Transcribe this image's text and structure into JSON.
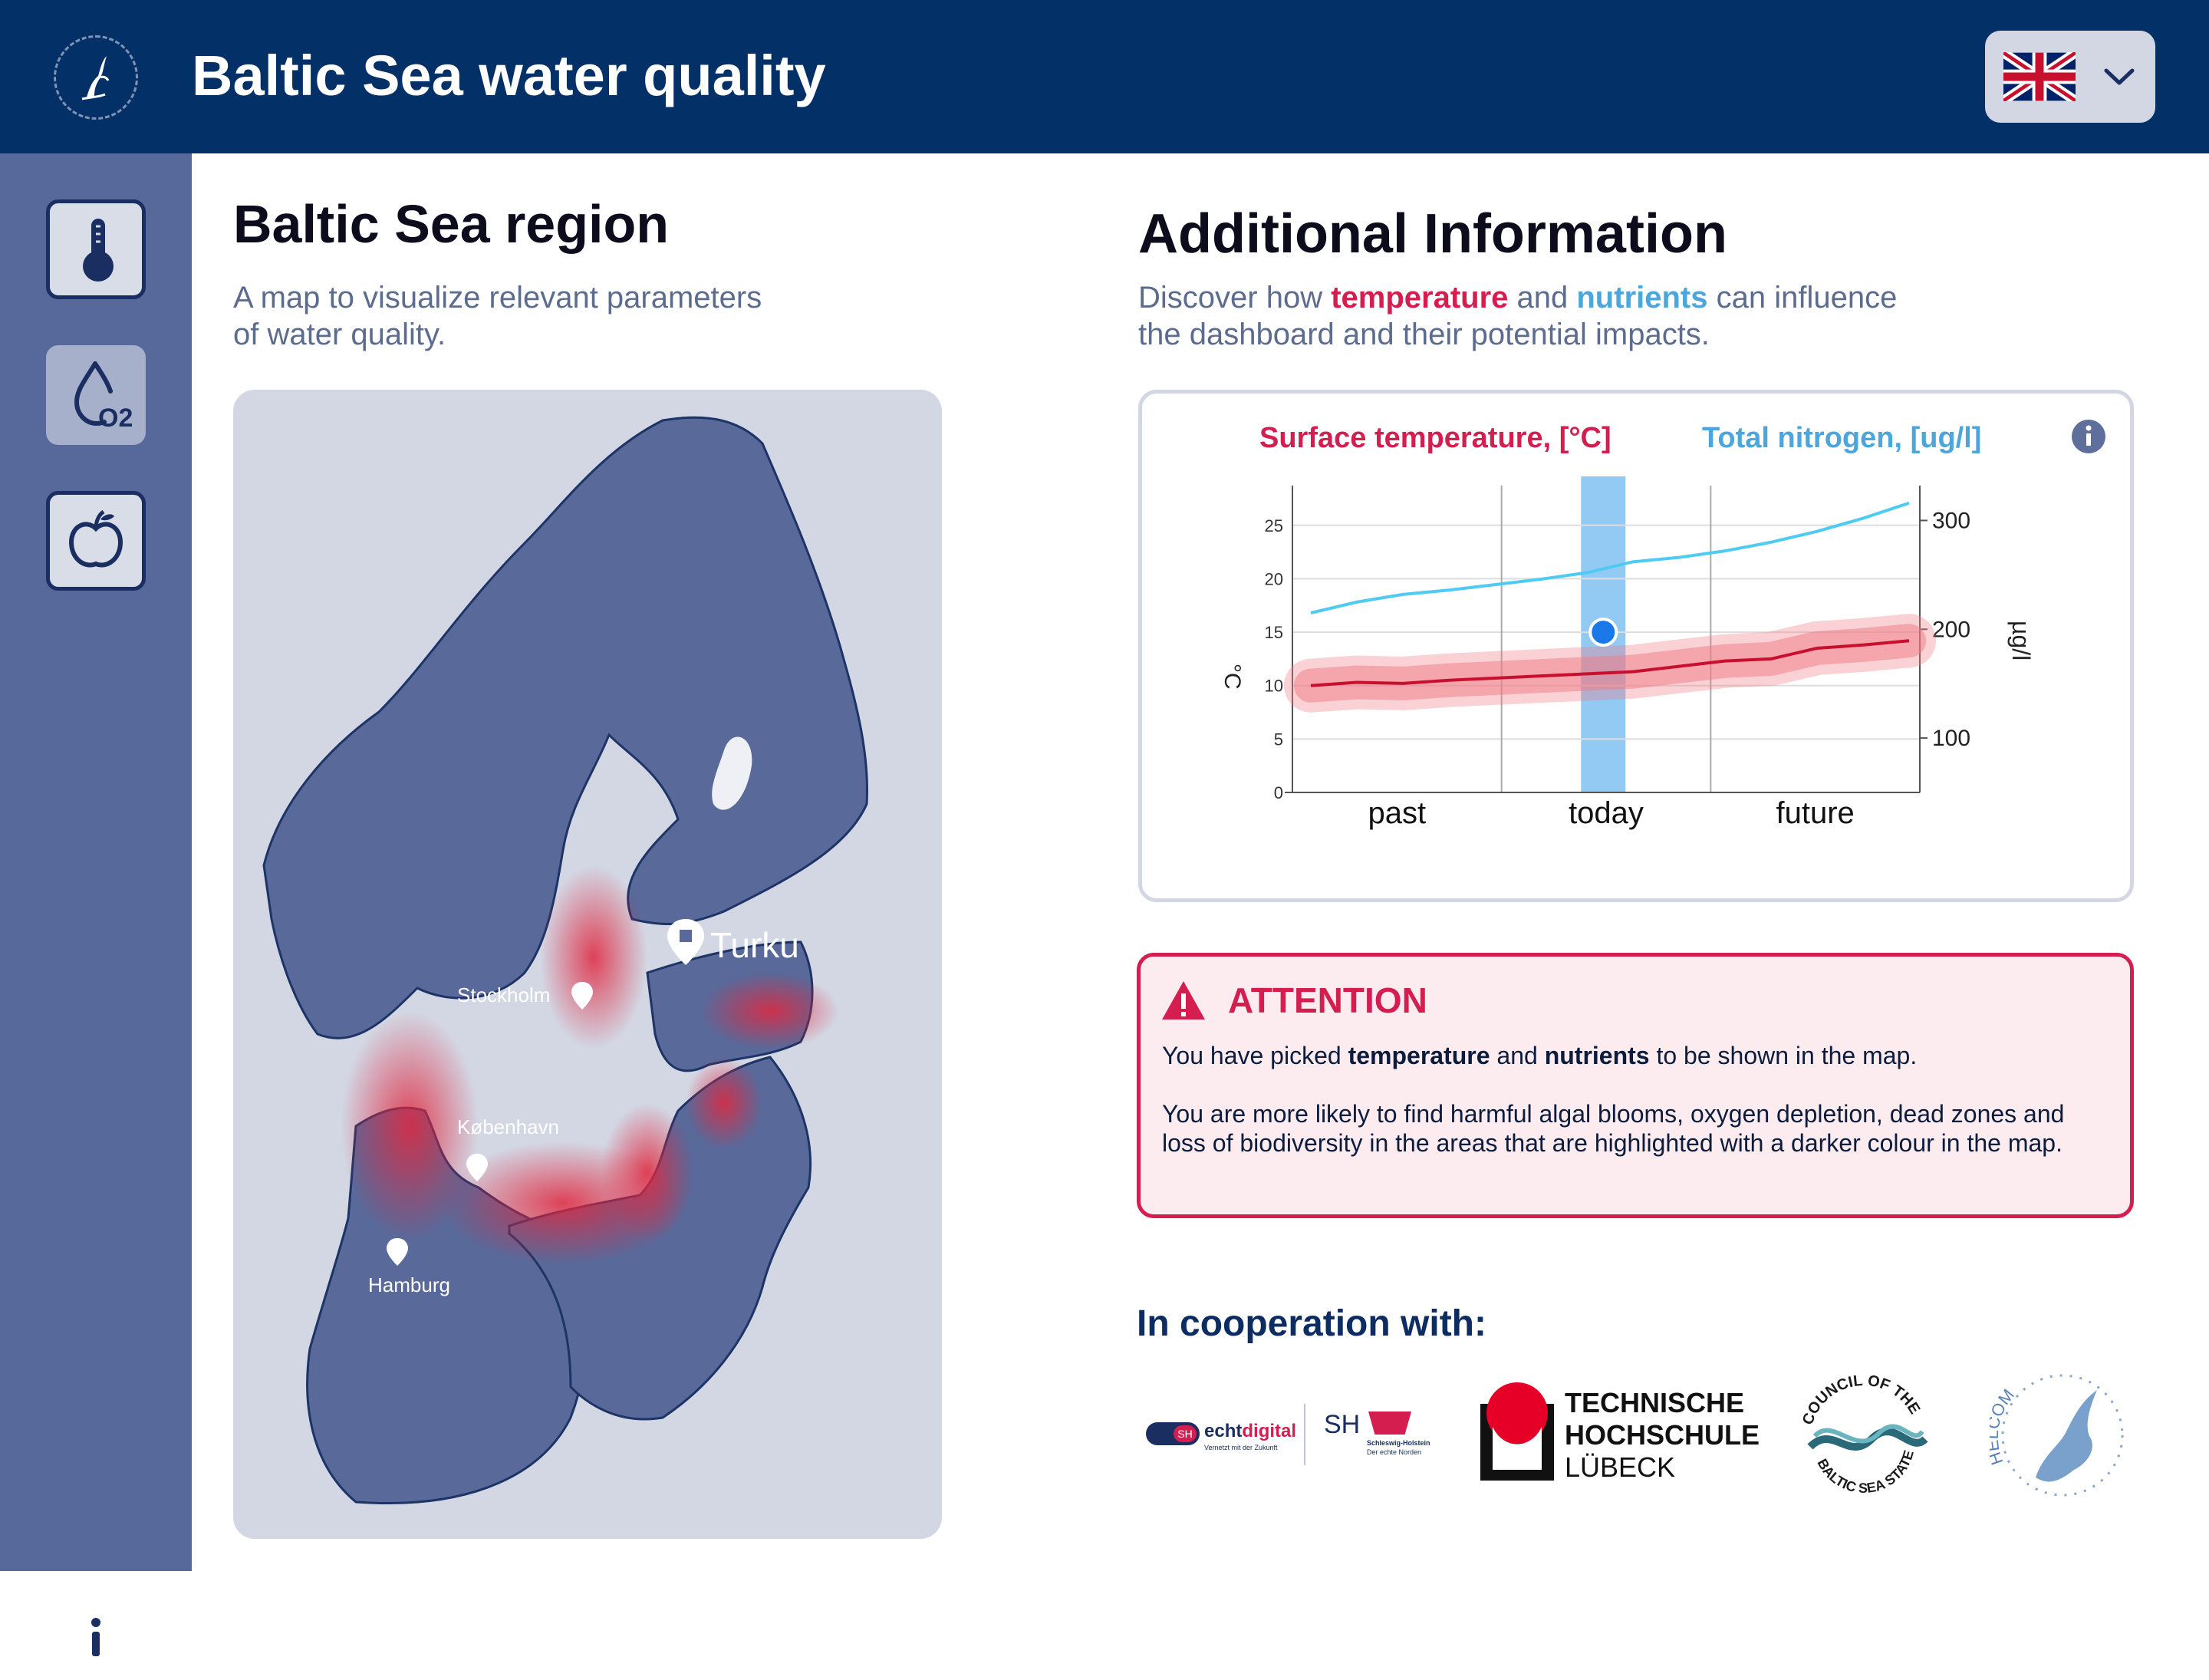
{
  "header": {
    "title": "Baltic Sea water quality",
    "language_flag": "uk-flag-icon"
  },
  "sidebar": {
    "buttons": [
      {
        "name": "temperature",
        "icon": "thermometer-icon"
      },
      {
        "name": "oxygen",
        "icon": "oxygen-drop-icon",
        "active": true
      },
      {
        "name": "nutrients",
        "icon": "apple-icon"
      }
    ],
    "info_icon": "info-icon"
  },
  "region": {
    "title": "Baltic Sea region",
    "subtitle_line1": "A map to visualize relevant parameters",
    "subtitle_line2": "of water quality.",
    "cities": [
      "Turku",
      "Stockholm",
      "København",
      "Hamburg"
    ]
  },
  "additional": {
    "title": "Additional Information",
    "line1_pre": "Discover how ",
    "line1_temp": "temperature",
    "line1_mid": " and ",
    "line1_nutr": "nutrients",
    "line1_post": " can influence",
    "line2": "the dashboard and their potential impacts."
  },
  "chart_data": {
    "type": "line",
    "series": [
      {
        "name": "Surface temperature, [°C]",
        "axis": "left",
        "color": "#d51e50",
        "values": [
          10,
          10.3,
          10.2,
          10.5,
          10.7,
          10.9,
          11.1,
          11.3,
          11.8,
          12.3,
          12.5,
          13.5,
          13.8,
          14.2
        ]
      },
      {
        "name": "Total nitrogen, [ug/l]",
        "axis": "right",
        "color": "#55c8f0",
        "values": [
          215,
          225,
          232,
          236,
          241,
          246,
          252,
          262,
          266,
          272,
          280,
          290,
          302,
          316
        ]
      }
    ],
    "x_labels": [
      "past",
      "today",
      "future"
    ],
    "ylabel_left": "°C",
    "ylabel_right": "µg/l",
    "yticks_left": [
      0,
      5,
      10,
      15,
      20,
      25
    ],
    "yticks_right": [
      100,
      200,
      300
    ],
    "ylim_left": [
      0,
      28
    ],
    "ylim_right": [
      50,
      325
    ],
    "marker": {
      "x": "today",
      "y": 15
    },
    "highlight": "today",
    "grid": true,
    "info_icon": "info-icon"
  },
  "alert": {
    "icon": "warning-icon",
    "title": "ATTENTION",
    "p1_pre": "You have picked ",
    "p1_temp": "temperature",
    "p1_mid": " and ",
    "p1_nutr": "nutrients",
    "p1_post": " to be shown in the map.",
    "p2": "You are more likely to find harmful algal blooms, oxygen depletion, dead zones and loss of biodiversity in the areas that are highlighted with a darker colour in the map."
  },
  "coop": {
    "title": "In cooperation with:",
    "echt_sh": "SH",
    "echt_main": "echt",
    "echt_digital": "digital",
    "echt_tag": "Vernetzt mit der Zukunft",
    "sh": "SH",
    "sh_name": "Schleswig-Holstein",
    "sh_tag": "Der echte Norden",
    "th1": "TECHNISCHE",
    "th2": "HOCHSCHULE",
    "th3": "LÜBECK",
    "cbss_top": "COUNCIL OF THE",
    "cbss_bottom": "BALTIC SEA STATES",
    "helcom": "HELCOM"
  }
}
